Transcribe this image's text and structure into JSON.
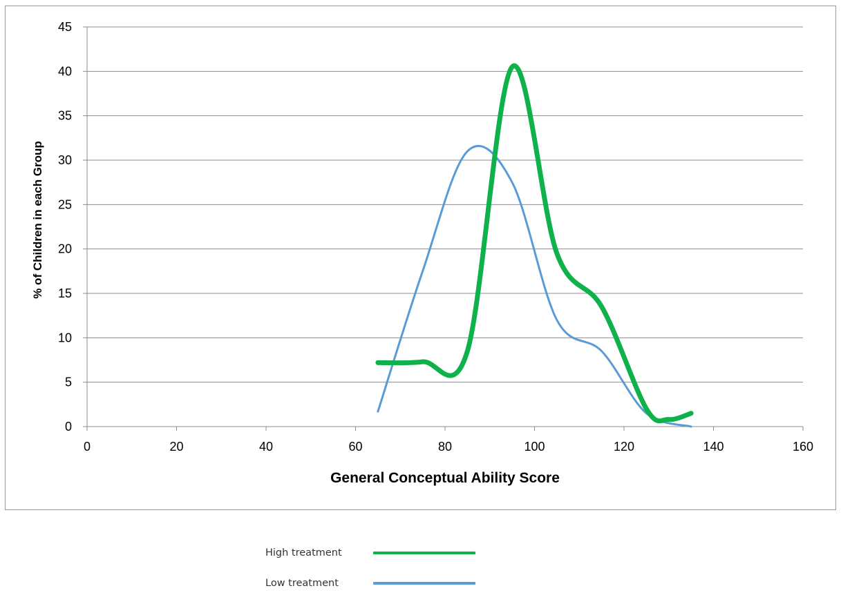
{
  "chart_data": {
    "type": "line",
    "xlabel": "General Conceptual Ability Score",
    "ylabel": "% of Children in each Group",
    "xlim": [
      0,
      160
    ],
    "ylim": [
      0,
      45
    ],
    "xticks": [
      0,
      20,
      40,
      60,
      80,
      100,
      120,
      140,
      160
    ],
    "yticks": [
      0,
      5,
      10,
      15,
      20,
      25,
      30,
      35,
      40,
      45
    ],
    "grid": "horizontal",
    "legend_position": "bottom",
    "smooth": true,
    "series": [
      {
        "name": "High treatment",
        "color": "#0fb14b",
        "x": [
          65,
          75,
          85,
          95,
          105,
          115,
          125,
          130,
          135
        ],
        "y": [
          7.2,
          7.3,
          8.5,
          40.5,
          19.5,
          13.5,
          2,
          0.8,
          1.5
        ]
      },
      {
        "name": "Low treatment",
        "color": "#5b9bd5",
        "x": [
          65,
          75,
          85,
          95,
          105,
          115,
          125,
          135
        ],
        "y": [
          1.7,
          17.5,
          31,
          27.5,
          12,
          8.5,
          1.5,
          0
        ]
      }
    ]
  }
}
